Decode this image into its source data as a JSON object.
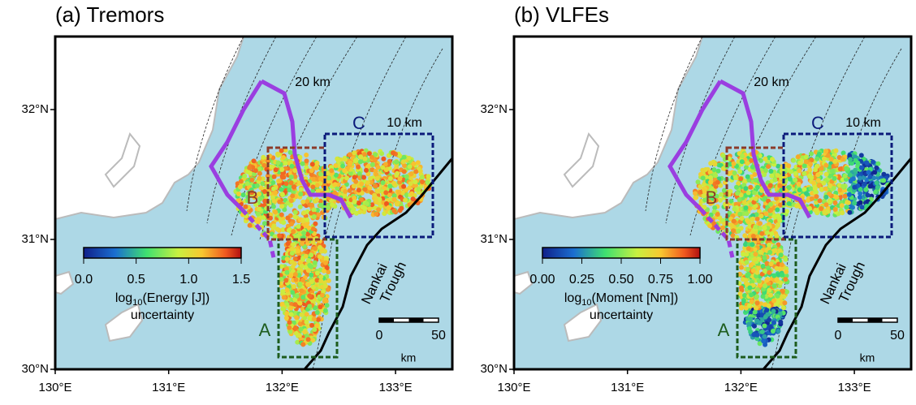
{
  "axes": {
    "lat": [
      "30°N",
      "31°N",
      "32°N"
    ],
    "lon": [
      "130°E",
      "131°E",
      "132°E",
      "133°E"
    ]
  },
  "panels": [
    {
      "title": "(a) Tremors",
      "contours": [
        "20 km",
        "10 km"
      ],
      "regions": [
        "A",
        "B",
        "C"
      ],
      "trough": [
        "Nankai",
        "Trough"
      ],
      "colorbar": {
        "ticks": [
          "0.0",
          "0.5",
          "1.0",
          "1.5"
        ],
        "label": [
          "log",
          "10",
          "(Energy [J])"
        ],
        "sublabel": "uncertainty"
      },
      "scale": {
        "ticks": [
          "0",
          "50"
        ],
        "unit": "km"
      }
    },
    {
      "title": "(b) VLFEs",
      "contours": [
        "20 km",
        "10 km"
      ],
      "regions": [
        "A",
        "B",
        "C"
      ],
      "trough": [
        "Nankai",
        "Trough"
      ],
      "colorbar": {
        "ticks": [
          "0.00",
          "0.25",
          "0.50",
          "0.75",
          "1.00"
        ],
        "label": [
          "log",
          "10",
          "(Moment [Nm])"
        ],
        "sublabel": "uncertainty"
      },
      "scale": {
        "ticks": [
          "0",
          "50"
        ],
        "unit": "km"
      }
    }
  ]
}
